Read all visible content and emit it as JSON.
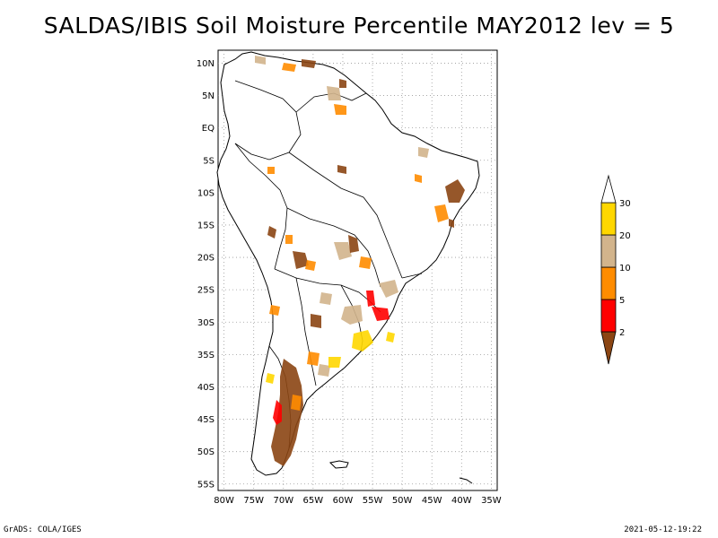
{
  "title": "SALDAS/IBIS Soil Moisture Percentile MAY2012 lev = 5",
  "map": {
    "lat_labels": [
      "10N",
      "5N",
      "EQ",
      "5S",
      "10S",
      "15S",
      "20S",
      "25S",
      "30S",
      "35S",
      "40S",
      "45S",
      "50S",
      "55S"
    ],
    "lon_labels": [
      "80W",
      "75W",
      "70W",
      "65W",
      "60W",
      "55W",
      "50W",
      "45W",
      "40W",
      "35W"
    ],
    "lat_range": [
      -56,
      12
    ],
    "lon_range": [
      -81,
      -34
    ],
    "grid": "dotted"
  },
  "legend": {
    "labels": [
      "2",
      "5",
      "10",
      "20",
      "30"
    ],
    "colors": [
      "#8b4513",
      "#ff0000",
      "#ff8c00",
      "#d2b48c",
      "#ffd700",
      "#ffffff"
    ]
  },
  "colors": {
    "brown": "#8b4513",
    "red": "#ff0000",
    "orange": "#ff8c00",
    "tan": "#d2b48c",
    "yellow": "#ffd700"
  },
  "footer": {
    "left": "GrADS: COLA/IGES",
    "right": "2021-05-12-19:22"
  }
}
